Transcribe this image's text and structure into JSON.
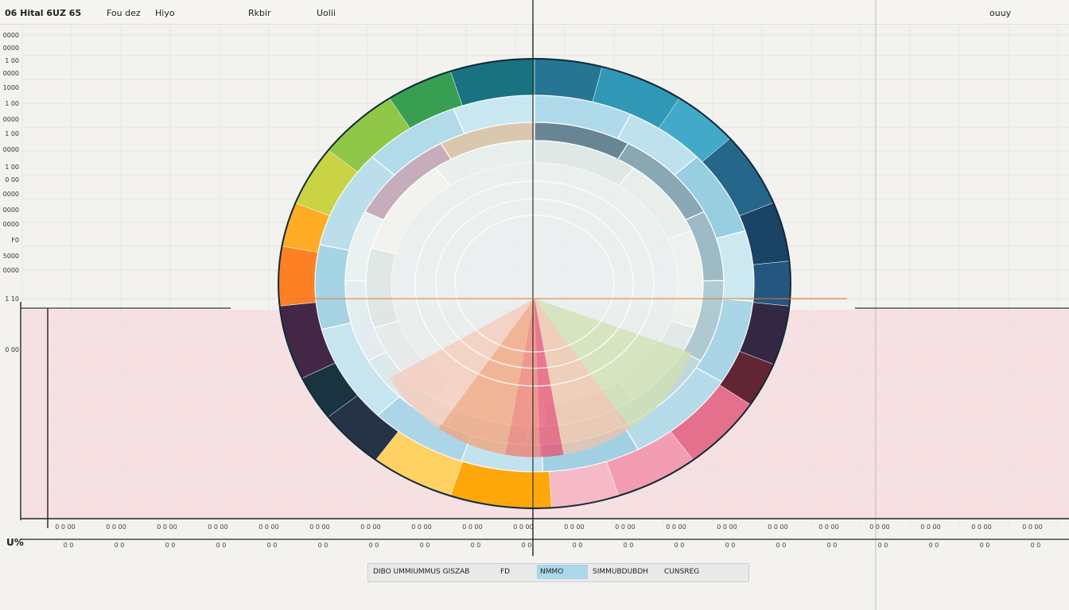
{
  "header": {
    "label_a": "06 Hital 6UZ 65",
    "label_b": "Fou dez",
    "label_c": "Hiyo",
    "label_d": "Rkbir",
    "label_e": "Uolii",
    "label_f": "ouuy"
  },
  "x_prefix": "U%",
  "legend": {
    "item1": "DIBO UMMIUMMUS GISZAB",
    "item2": "FD",
    "item3": "NMMO",
    "item4": "SIMMUBDUBDH",
    "item5": "CUNSREG"
  },
  "colors": {
    "outer_ring": [
      "#1a6f8f",
      "#2793b5",
      "#3aa6c6",
      "#1a5f85",
      "#0f3a5f",
      "#1b4e7a",
      "#2a1e3a",
      "#5a1c2a",
      "#e56b8a",
      "#f29ab0",
      "#f7b8c5",
      "#ffa500",
      "#ffd15c",
      "#1b2a3f",
      "#0f2a38",
      "#3b1e3f",
      "#ff7a1a",
      "#ffa91a",
      "#c7d23a",
      "#8bc53f",
      "#2e9a4a",
      "#0d6c7a"
    ],
    "accent_line": "#e07a3a",
    "pink_band": "#f6d9dc"
  },
  "chart_data": {
    "type": "pie",
    "title": "",
    "y_tick_labels": [
      "0000",
      "0000",
      "1 00",
      "0000",
      "1000",
      "1 00",
      "0000",
      "1 00",
      "0000",
      "1 00",
      "0 00",
      "0000",
      "0000",
      "0000",
      "F0",
      "5000",
      "0000",
      "1 10",
      "0 00"
    ],
    "x_tick_labels_top": [
      "0 0 00",
      "0 0 00",
      "0 0 00",
      "0 0 00",
      "0 0 00",
      "0 0 00",
      "0 0 00",
      "0 0 00",
      "0 0 00",
      "0 0 00",
      "0 0 00",
      "0 0 00",
      "0 0 00",
      "0 0 00",
      "0 0 00",
      "0 0 00",
      "0 0 00",
      "0 0 00",
      "0 0 00",
      "0 0 00"
    ],
    "x_tick_labels_bottom": [
      "0 0",
      "0 0",
      "0 0",
      "0 0",
      "0 0",
      "0 0",
      "0 0",
      "0 0",
      "0 0",
      "0 0",
      "0 0",
      "0 0",
      "0 0",
      "0 0",
      "0 0",
      "0 0",
      "0 0",
      "0 0",
      "0 0",
      "0 0"
    ],
    "rings": [
      {
        "name": "",
        "values": [
          4,
          5,
          4,
          5,
          4,
          3,
          4,
          3,
          5,
          5,
          4,
          6,
          5,
          4,
          3,
          5,
          4,
          3,
          4,
          5,
          4,
          5
        ]
      },
      {
        "name": "",
        "values": [
          6,
          5,
          6,
          5,
          6,
          7,
          6,
          5,
          6,
          7,
          6,
          7,
          6,
          5
        ]
      },
      {
        "name": "",
        "values": [
          7,
          8,
          6,
          7,
          8,
          7,
          6,
          8,
          7,
          6,
          8,
          7
        ]
      },
      {
        "name": "",
        "values": [
          10,
          9,
          11,
          10,
          9,
          11,
          10,
          9,
          11,
          10
        ]
      }
    ],
    "legend_position": "bottom",
    "grid": true
  }
}
